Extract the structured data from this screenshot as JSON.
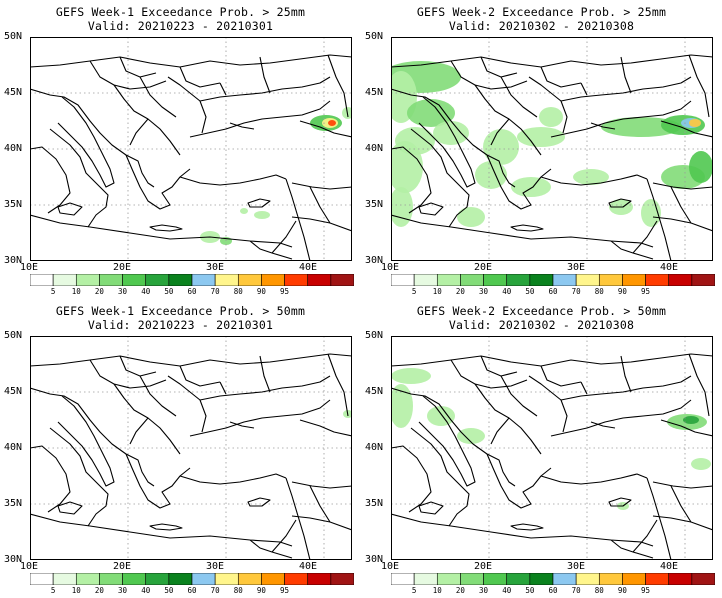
{
  "panels": [
    {
      "title": "GEFS Week-1 Exceedance Prob. > 25mm",
      "valid": "Valid: 20210223 - 20210301",
      "precip": "week1_25"
    },
    {
      "title": "GEFS Week-2 Exceedance Prob. > 25mm",
      "valid": "Valid: 20210302 - 20210308",
      "precip": "week2_25"
    },
    {
      "title": "GEFS Week-1 Exceedance Prob. > 50mm",
      "valid": "Valid: 20210223 - 20210301",
      "precip": "week1_50"
    },
    {
      "title": "GEFS Week-2 Exceedance Prob. > 50mm",
      "valid": "Valid: 20210302 - 20210308",
      "precip": "week2_50"
    }
  ],
  "axes": {
    "lon_ticks": [
      "10E",
      "20E",
      "30E",
      "40E"
    ],
    "lat_ticks": [
      "50N",
      "45N",
      "40N",
      "35N",
      "30N"
    ]
  },
  "colorbar": {
    "labels": [
      "5",
      "10",
      "20",
      "30",
      "40",
      "50",
      "60",
      "70",
      "80",
      "90",
      "95"
    ],
    "colors": [
      "#ffffff",
      "#e6fae1",
      "#b4f0a5",
      "#82dc78",
      "#50c850",
      "#28a43c",
      "#0a821e",
      "#8cc8f0",
      "#fff58c",
      "#ffc83c",
      "#ff9600",
      "#ff3c00",
      "#c80000",
      "#a01414"
    ]
  }
}
